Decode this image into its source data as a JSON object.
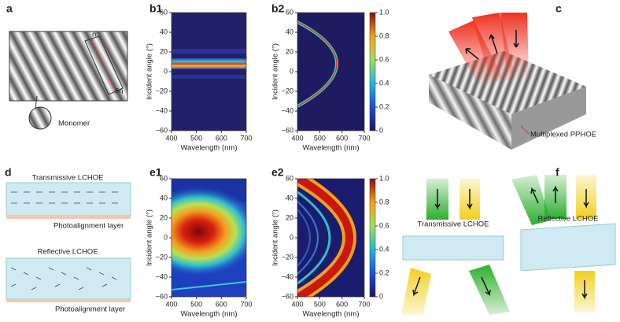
{
  "panels": {
    "a": {
      "label": "a",
      "monomer": "Monomer",
      "n": "n",
      "dn": "δn"
    },
    "b1": {
      "label": "b1",
      "ylabel": "Incident angle (°)",
      "xlabel": "Wavelength (nm)",
      "yticks": [
        "60",
        "40",
        "20",
        "0",
        "−20",
        "−40",
        "−60"
      ],
      "xticks": [
        "400",
        "500",
        "600",
        "700"
      ]
    },
    "b2": {
      "label": "b2",
      "ylabel": "Incident angle (°)",
      "xlabel": "Wavelength (nm)",
      "yticks": [
        "60",
        "40",
        "20",
        "0",
        "−20",
        "−40",
        "−60"
      ],
      "xticks": [
        "400",
        "500",
        "600",
        "700"
      ],
      "cbticks": [
        "1.0",
        "0.8",
        "0.6",
        "0.4",
        "0.2",
        "0"
      ]
    },
    "c": {
      "label": "c",
      "caption": "Multiplexed PPHOE"
    },
    "d": {
      "label": "d",
      "top": "Transmissive LCHOE",
      "topLayer": "Photoalignment layer",
      "bottom": "Reflective LCHOE",
      "bottomLayer": "Photoalignment layer"
    },
    "e1": {
      "label": "e1",
      "ylabel": "Incident angle (°)",
      "xlabel": "Wavelength (nm)",
      "yticks": [
        "60",
        "40",
        "20",
        "0",
        "−20",
        "−40",
        "−60"
      ],
      "xticks": [
        "400",
        "500",
        "600",
        "700"
      ]
    },
    "e2": {
      "label": "e2",
      "ylabel": "Incident angle (°)",
      "xlabel": "Wavelength (nm)",
      "yticks": [
        "60",
        "40",
        "20",
        "0",
        "−20",
        "−40",
        "−60"
      ],
      "xticks": [
        "400",
        "500",
        "600",
        "700"
      ],
      "cbticks": [
        "1.0",
        "0.8",
        "0.6",
        "0.4",
        "0.2",
        "0"
      ]
    },
    "f": {
      "label": "f",
      "left": "Transmissive LCHOE",
      "right": "Reflective LCHOE"
    }
  }
}
